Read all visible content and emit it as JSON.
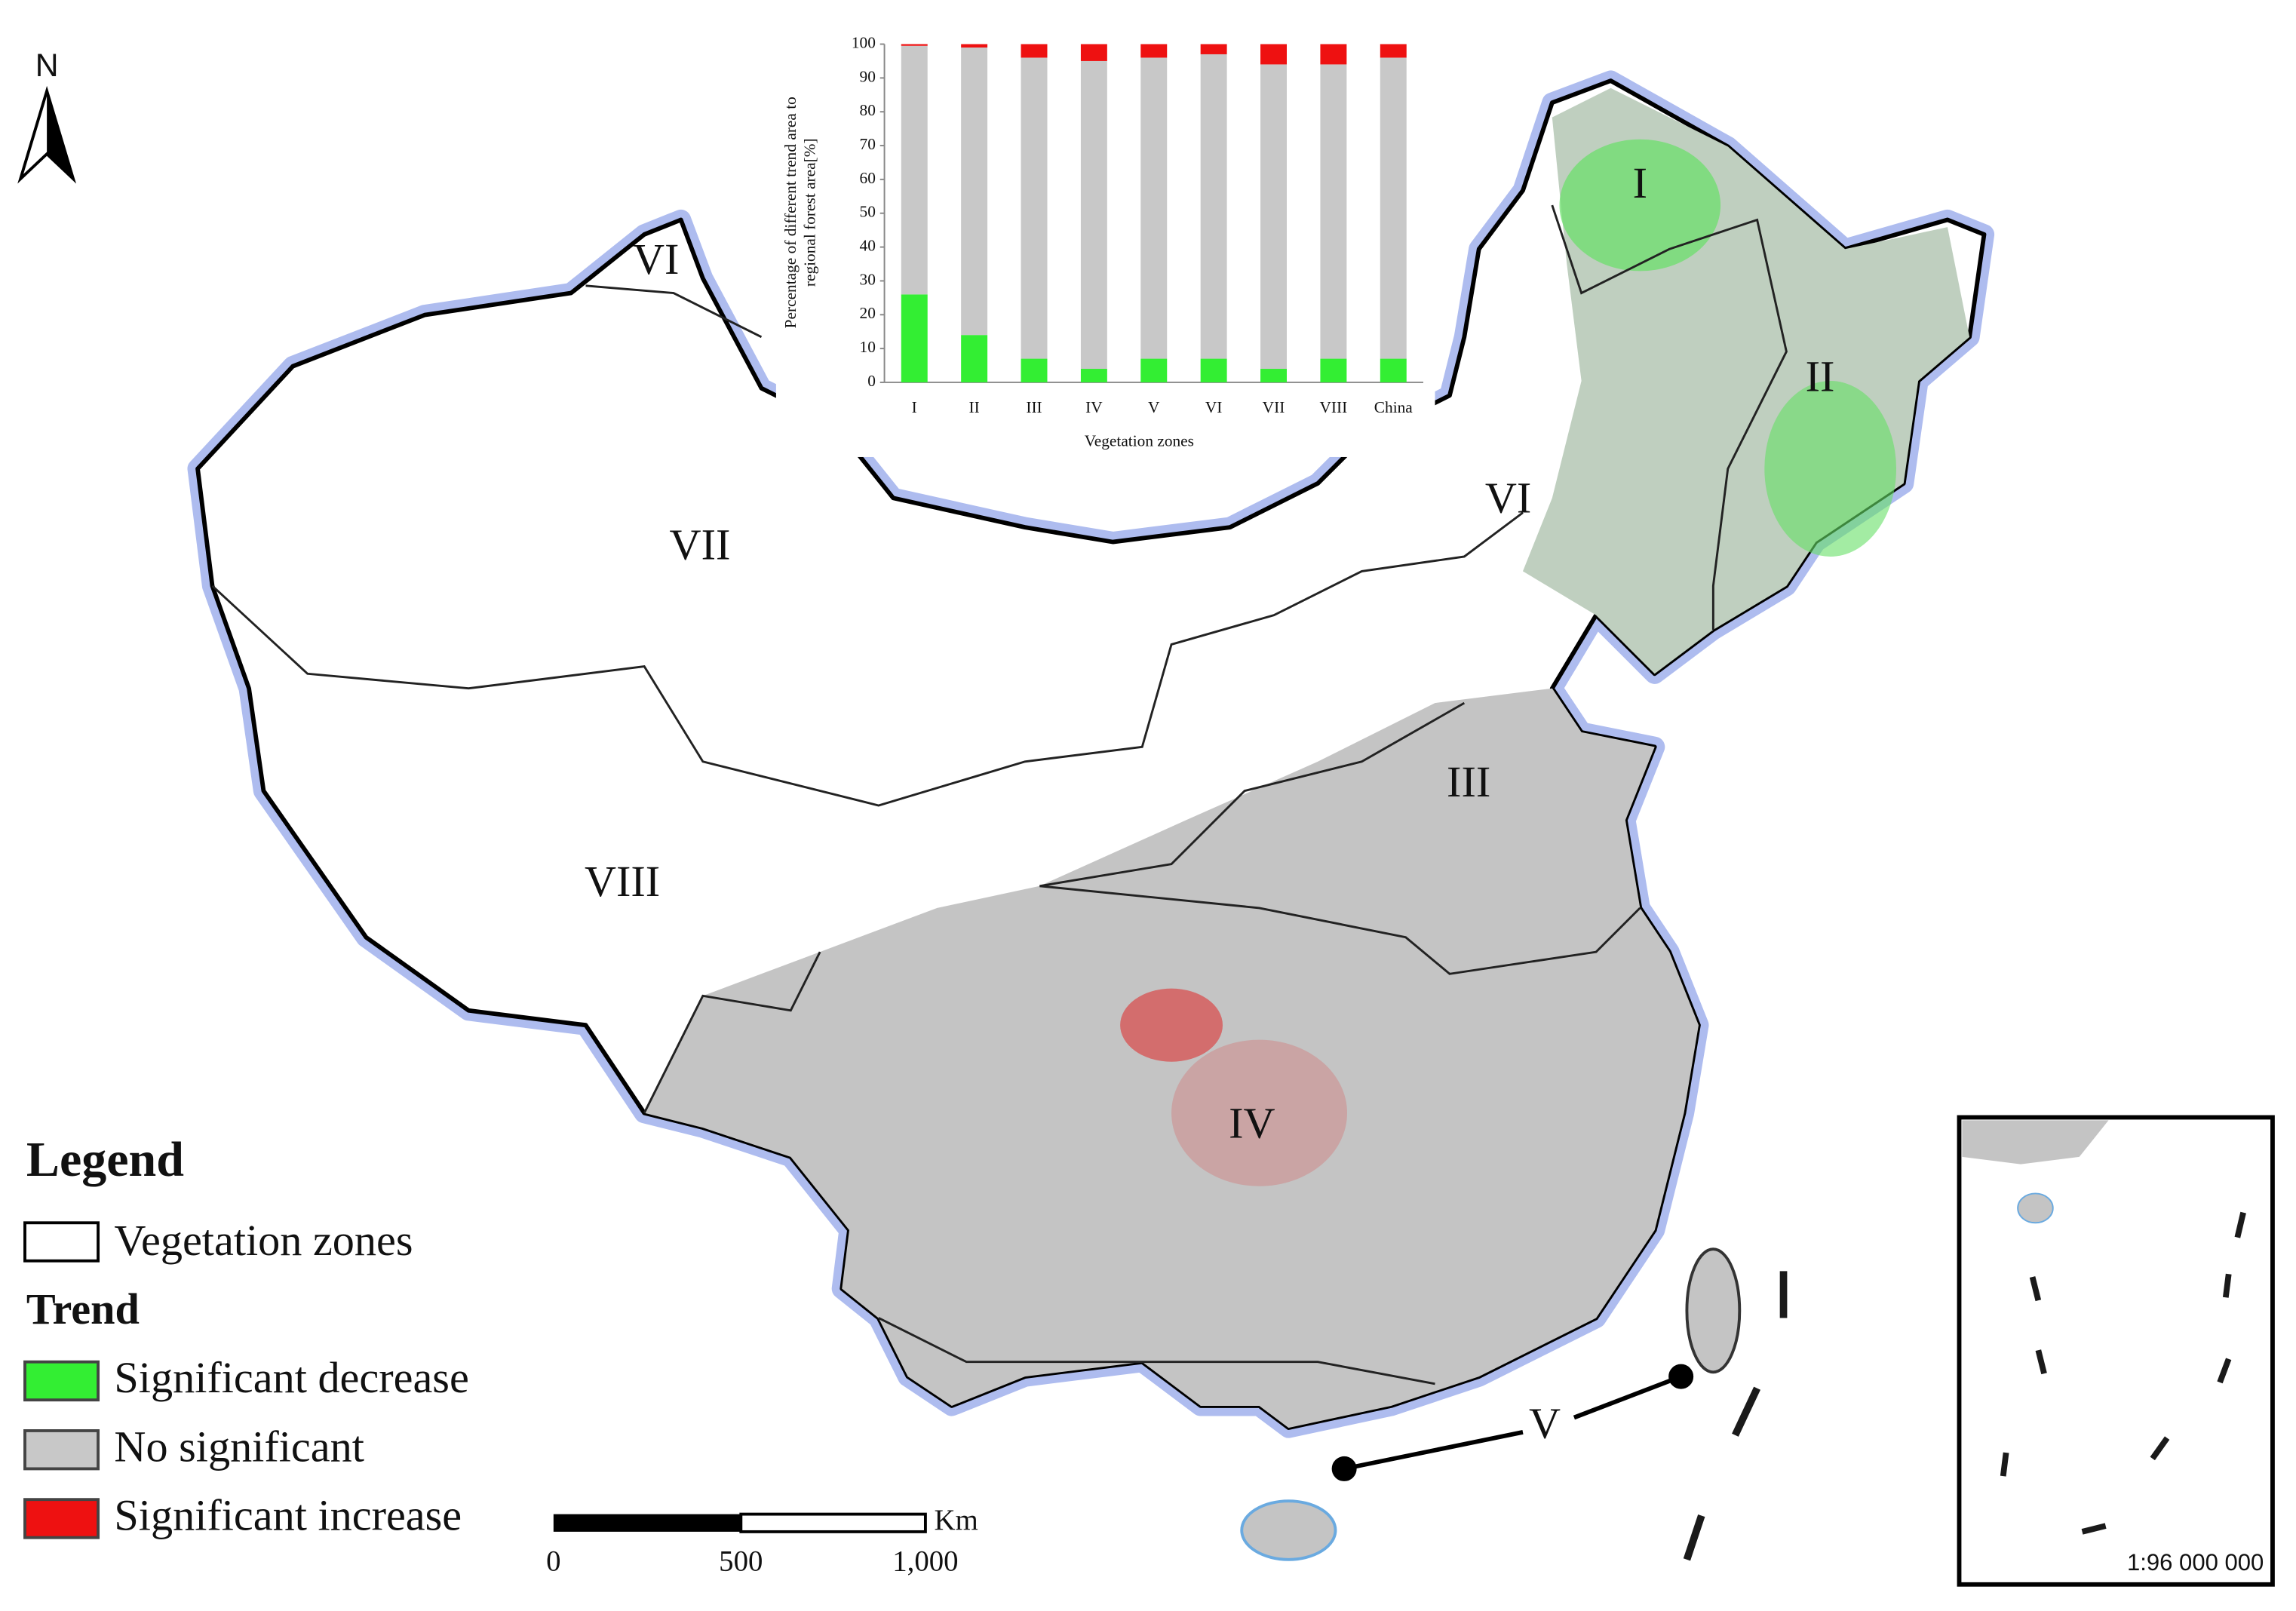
{
  "chart_data": {
    "type": "stacked_bar",
    "ylabel_lines": [
      "Percentage of different trend area to",
      "regional forest area[%]"
    ],
    "xlabel": "Vegetation zones",
    "categories": [
      "I",
      "II",
      "III",
      "IV",
      "V",
      "VI",
      "VII",
      "VIII",
      "China"
    ],
    "series": [
      {
        "name": "Significant decrease",
        "color": "#33ee33",
        "values": [
          26,
          14,
          7,
          4,
          7,
          7,
          4,
          7,
          7
        ]
      },
      {
        "name": "No significant",
        "color": "#c8c8c8",
        "values": [
          73.5,
          85,
          89,
          91,
          89,
          90,
          90,
          87,
          89
        ]
      },
      {
        "name": "Significant increase",
        "color": "#ee1111",
        "values": [
          0.5,
          1,
          4,
          5,
          4,
          3,
          6,
          6,
          4
        ]
      }
    ],
    "ylim": [
      0,
      100
    ],
    "yticks": [
      0,
      10,
      20,
      30,
      40,
      50,
      60,
      70,
      80,
      90,
      100
    ]
  },
  "map": {
    "north": "N",
    "zone_labels": [
      "I",
      "II",
      "III",
      "IV",
      "V",
      "VI",
      "VI",
      "VII",
      "VIII"
    ],
    "legend": {
      "title": "Legend",
      "zones": "Vegetation zones",
      "trend_title": "Trend"
    },
    "scale_bar": {
      "labels": [
        "0",
        "500",
        "1,000"
      ],
      "unit": "Km"
    },
    "inset_scale": "1:96 000 000"
  }
}
